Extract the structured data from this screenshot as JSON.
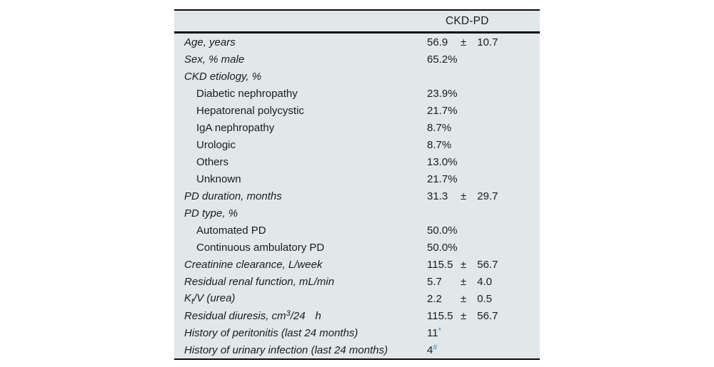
{
  "page": {
    "background": "#ffffff"
  },
  "table": {
    "background": "#e2e7ea",
    "rule_color": "#0a0a0a",
    "text_color": "#1c1c1c",
    "marker_color": "#2e8fc8",
    "header": {
      "column_label": "CKD-PD"
    },
    "rows": [
      {
        "label_parts": [
          {
            "t": "text",
            "v": "Age, years"
          }
        ],
        "italic": true,
        "indent": 0,
        "value": {
          "kind": "pm",
          "mean": "56.9",
          "sign": "±",
          "sd": "10.7"
        }
      },
      {
        "label_parts": [
          {
            "t": "text",
            "v": "Sex, % male"
          }
        ],
        "italic": true,
        "indent": 0,
        "value": {
          "kind": "plain",
          "text": "65.2%"
        }
      },
      {
        "label_parts": [
          {
            "t": "text",
            "v": "CKD etiology, %"
          }
        ],
        "italic": true,
        "indent": 0,
        "value": null
      },
      {
        "label_parts": [
          {
            "t": "text",
            "v": "Diabetic nephropathy"
          }
        ],
        "italic": false,
        "indent": 1,
        "value": {
          "kind": "plain",
          "text": "23.9%"
        }
      },
      {
        "label_parts": [
          {
            "t": "text",
            "v": "Hepatorenal polycystic"
          }
        ],
        "italic": false,
        "indent": 1,
        "value": {
          "kind": "plain",
          "text": "21.7%"
        }
      },
      {
        "label_parts": [
          {
            "t": "text",
            "v": "IgA nephropathy"
          }
        ],
        "italic": false,
        "indent": 1,
        "value": {
          "kind": "plain",
          "text": "8.7%"
        }
      },
      {
        "label_parts": [
          {
            "t": "text",
            "v": "Urologic"
          }
        ],
        "italic": false,
        "indent": 1,
        "value": {
          "kind": "plain",
          "text": "8.7%"
        }
      },
      {
        "label_parts": [
          {
            "t": "text",
            "v": "Others"
          }
        ],
        "italic": false,
        "indent": 1,
        "value": {
          "kind": "plain",
          "text": "13.0%"
        }
      },
      {
        "label_parts": [
          {
            "t": "text",
            "v": "Unknown"
          }
        ],
        "italic": false,
        "indent": 1,
        "value": {
          "kind": "plain",
          "text": "21.7%"
        }
      },
      {
        "label_parts": [
          {
            "t": "text",
            "v": "PD duration, months"
          }
        ],
        "italic": true,
        "indent": 0,
        "value": {
          "kind": "pm",
          "mean": "31.3",
          "sign": "±",
          "sd": "29.7"
        }
      },
      {
        "label_parts": [
          {
            "t": "text",
            "v": "PD type, %"
          }
        ],
        "italic": true,
        "indent": 0,
        "value": null
      },
      {
        "label_parts": [
          {
            "t": "text",
            "v": "Automated PD"
          }
        ],
        "italic": false,
        "indent": 1,
        "value": {
          "kind": "plain",
          "text": "50.0%"
        }
      },
      {
        "label_parts": [
          {
            "t": "text",
            "v": "Continuous ambulatory PD"
          }
        ],
        "italic": false,
        "indent": 1,
        "value": {
          "kind": "plain",
          "text": "50.0%"
        }
      },
      {
        "label_parts": [
          {
            "t": "text",
            "v": "Creatinine clearance, L/week"
          }
        ],
        "italic": true,
        "indent": 0,
        "value": {
          "kind": "pm",
          "mean": "115.5",
          "sign": "±",
          "sd": "56.7"
        }
      },
      {
        "label_parts": [
          {
            "t": "text",
            "v": "Residual renal function, mL/min"
          }
        ],
        "italic": true,
        "indent": 0,
        "value": {
          "kind": "pm",
          "mean": "5.7",
          "sign": "±",
          "sd": "4.0"
        }
      },
      {
        "label_parts": [
          {
            "t": "text",
            "v": "K"
          },
          {
            "t": "sub",
            "v": "t"
          },
          {
            "t": "text",
            "v": "/V (urea)"
          }
        ],
        "italic": true,
        "indent": 0,
        "value": {
          "kind": "pm",
          "mean": "2.2",
          "sign": "±",
          "sd": "0.5"
        }
      },
      {
        "label_parts": [
          {
            "t": "text",
            "v": "Residual diuresis, cm"
          },
          {
            "t": "sup",
            "v": "3"
          },
          {
            "t": "text",
            "v": "/24"
          },
          {
            "t": "gap",
            "v": ""
          },
          {
            "t": "text",
            "v": "h"
          }
        ],
        "italic": true,
        "indent": 0,
        "value": {
          "kind": "pm",
          "mean": "115.5",
          "sign": "±",
          "sd": "56.7"
        }
      },
      {
        "label_parts": [
          {
            "t": "text",
            "v": "History of peritonitis (last 24 months)"
          }
        ],
        "italic": true,
        "indent": 0,
        "value": {
          "kind": "marked",
          "text": "11",
          "marker": "*"
        }
      },
      {
        "label_parts": [
          {
            "t": "text",
            "v": "History of urinary infection (last 24 months)"
          }
        ],
        "italic": true,
        "indent": 0,
        "value": {
          "kind": "marked",
          "text": "4",
          "marker": "#"
        }
      }
    ]
  }
}
